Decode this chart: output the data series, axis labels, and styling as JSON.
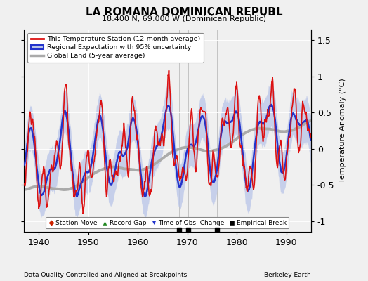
{
  "title": "LA ROMANA DOMINICAN REPUBL",
  "subtitle": "18.400 N, 69.000 W (Dominican Republic)",
  "ylabel": "Temperature Anomaly (°C)",
  "xlabel_left": "Data Quality Controlled and Aligned at Breakpoints",
  "xlabel_right": "Berkeley Earth",
  "ylim": [
    -1.15,
    1.65
  ],
  "xlim": [
    1937,
    1995
  ],
  "xticks": [
    1940,
    1950,
    1960,
    1970,
    1980,
    1990
  ],
  "yticks": [
    -1.0,
    -0.5,
    0.0,
    0.5,
    1.0,
    1.5
  ],
  "ytick_labels": [
    "-1",
    "-0.5",
    "0",
    "0.5",
    "1",
    "1.5"
  ],
  "bg_color": "#f0f0f0",
  "plot_bg": "#f0f0f0",
  "line_red": "#dd1111",
  "line_blue": "#2233cc",
  "fill_blue": "#b8c4e8",
  "line_gray": "#aaaaaa",
  "empirical_breaks": [
    1968.3,
    1970.2,
    1976.0
  ],
  "seed": 77
}
